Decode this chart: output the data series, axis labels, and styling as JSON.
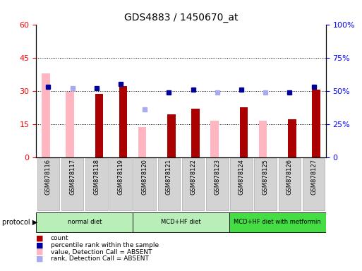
{
  "title": "GDS4883 / 1450670_at",
  "samples": [
    "GSM878116",
    "GSM878117",
    "GSM878118",
    "GSM878119",
    "GSM878120",
    "GSM878121",
    "GSM878122",
    "GSM878123",
    "GSM878124",
    "GSM878125",
    "GSM878126",
    "GSM878127"
  ],
  "count": [
    null,
    null,
    28.5,
    32.0,
    null,
    19.5,
    22.0,
    null,
    22.5,
    null,
    17.0,
    30.5
  ],
  "value_absent": [
    38.0,
    29.5,
    null,
    null,
    13.5,
    null,
    null,
    16.5,
    null,
    16.5,
    null,
    null
  ],
  "percentile": [
    53.0,
    null,
    52.0,
    55.0,
    null,
    49.0,
    51.0,
    null,
    51.0,
    null,
    49.0,
    53.0
  ],
  "rank_absent": [
    null,
    52.0,
    null,
    null,
    36.0,
    null,
    null,
    49.0,
    null,
    49.0,
    null,
    null
  ],
  "left_ylim": [
    0,
    60
  ],
  "right_ylim": [
    0,
    100
  ],
  "left_yticks": [
    0,
    15,
    30,
    45,
    60
  ],
  "right_yticks": [
    0,
    25,
    50,
    75,
    100
  ],
  "right_yticklabels": [
    "0",
    "25%",
    "50%",
    "75%",
    "100%"
  ],
  "protocols": [
    {
      "label": "normal diet",
      "indices": [
        0,
        1,
        2,
        3
      ],
      "color": "#b8eeb8"
    },
    {
      "label": "MCD+HF diet",
      "indices": [
        4,
        5,
        6,
        7
      ],
      "color": "#b8eeb8"
    },
    {
      "label": "MCD+HF diet with metformin",
      "indices": [
        8,
        9,
        10,
        11
      ],
      "color": "#44dd44"
    }
  ],
  "bar_width": 0.38,
  "count_color": "#aa0000",
  "value_absent_color": "#ffb6c1",
  "percentile_color": "#000099",
  "rank_absent_color": "#aaaaee",
  "cell_bg": "#d3d3d3",
  "cell_edge": "#aaaaaa",
  "legend_items": [
    {
      "color": "#aa0000",
      "label": "count"
    },
    {
      "color": "#000099",
      "label": "percentile rank within the sample"
    },
    {
      "color": "#ffb6c1",
      "label": "value, Detection Call = ABSENT"
    },
    {
      "color": "#aaaaee",
      "label": "rank, Detection Call = ABSENT"
    }
  ]
}
